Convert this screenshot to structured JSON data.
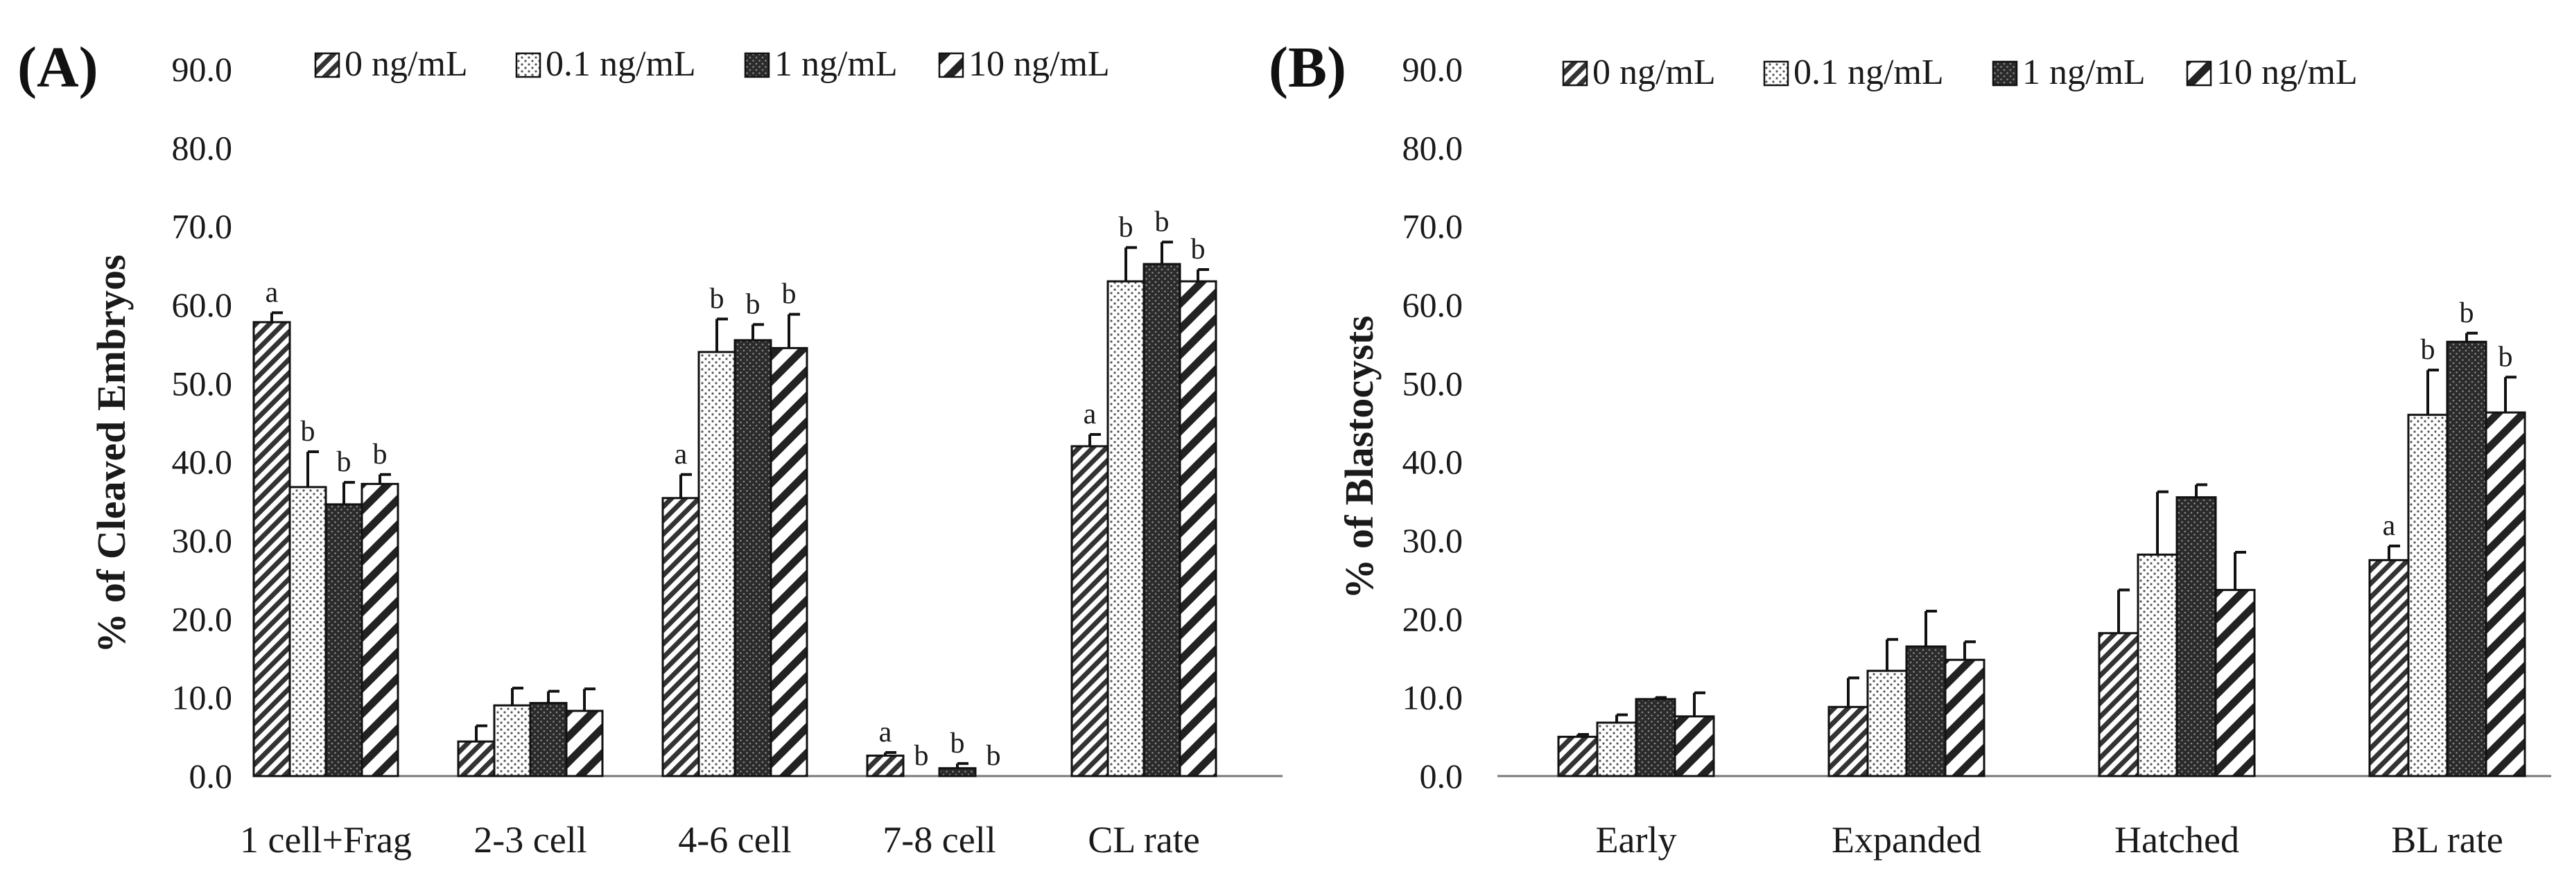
{
  "chart_data": [
    {
      "type": "bar",
      "panel_label": "(A)",
      "ylabel": "% of Cleaved Embryos",
      "xlabel": "",
      "ylim": [
        0,
        90
      ],
      "yticks": [
        "0.0",
        "10.0",
        "20.0",
        "30.0",
        "40.0",
        "50.0",
        "60.0",
        "70.0",
        "80.0",
        "90.0"
      ],
      "legend": [
        "0 ng/mL",
        "0.1 ng/mL",
        "1 ng/mL",
        "10 ng/mL"
      ],
      "legend_position": "top",
      "categories": [
        "1 cell+Frag",
        "2-3 cell",
        "4-6 cell",
        "7-8 cell",
        "CL rate"
      ],
      "series": [
        {
          "name": "0 ng/mL",
          "pattern": "diag-dense",
          "values": [
            57.8,
            4.4,
            35.4,
            2.6,
            42.0
          ],
          "errors": [
            1.2,
            2.0,
            3.0,
            0.4,
            1.5
          ],
          "labels": [
            "a",
            "",
            "a",
            "a",
            "a"
          ]
        },
        {
          "name": "0.1 ng/mL",
          "pattern": "dots",
          "values": [
            36.8,
            9.0,
            54.0,
            0.0,
            63.0
          ],
          "errors": [
            4.5,
            2.2,
            4.2,
            0.0,
            4.3
          ],
          "labels": [
            "b",
            "",
            "b",
            "b",
            "b"
          ]
        },
        {
          "name": "1 ng/mL",
          "pattern": "dark",
          "values": [
            34.6,
            9.3,
            55.5,
            1.0,
            65.2
          ],
          "errors": [
            2.8,
            1.5,
            2.0,
            0.6,
            2.8
          ],
          "labels": [
            "b",
            "",
            "b",
            "b",
            "b"
          ]
        },
        {
          "name": "10 ng/mL",
          "pattern": "diag-wide",
          "values": [
            37.2,
            8.3,
            54.5,
            0.0,
            63.0
          ],
          "errors": [
            1.2,
            2.8,
            4.3,
            0.0,
            1.5
          ],
          "labels": [
            "b",
            "",
            "b",
            "b",
            "b"
          ]
        }
      ]
    },
    {
      "type": "bar",
      "panel_label": "(B)",
      "ylabel": "% of Blastocysts",
      "xlabel": "",
      "ylim": [
        0,
        90
      ],
      "yticks": [
        "0.0",
        "10.0",
        "20.0",
        "30.0",
        "40.0",
        "50.0",
        "60.0",
        "70.0",
        "80.0",
        "90.0"
      ],
      "legend": [
        "0 ng/mL",
        "0.1 ng/mL",
        "1 ng/mL",
        "10 ng/mL"
      ],
      "legend_position": "top",
      "categories": [
        "Early",
        "Expanded",
        "Hatched",
        "BL rate"
      ],
      "series": [
        {
          "name": "0 ng/mL",
          "pattern": "diag-dense",
          "values": [
            5.0,
            8.8,
            18.2,
            27.5
          ],
          "errors": [
            0.3,
            3.7,
            5.5,
            1.8
          ],
          "labels": [
            "",
            "",
            "",
            "a"
          ]
        },
        {
          "name": "0.1 ng/mL",
          "pattern": "dots",
          "values": [
            6.8,
            13.4,
            28.2,
            46.0
          ],
          "errors": [
            1.0,
            4.0,
            8.0,
            5.7
          ],
          "labels": [
            "",
            "",
            "",
            "b"
          ]
        },
        {
          "name": "1 ng/mL",
          "pattern": "dark",
          "values": [
            9.8,
            16.5,
            35.5,
            55.3
          ],
          "errors": [
            0.2,
            4.5,
            1.6,
            1.1
          ],
          "labels": [
            "",
            "",
            "",
            "b"
          ]
        },
        {
          "name": "10 ng/mL",
          "pattern": "diag-wide",
          "values": [
            7.6,
            14.8,
            23.7,
            46.3
          ],
          "errors": [
            3.0,
            2.3,
            4.8,
            4.5
          ],
          "labels": [
            "",
            "",
            "",
            "b"
          ]
        }
      ]
    }
  ]
}
